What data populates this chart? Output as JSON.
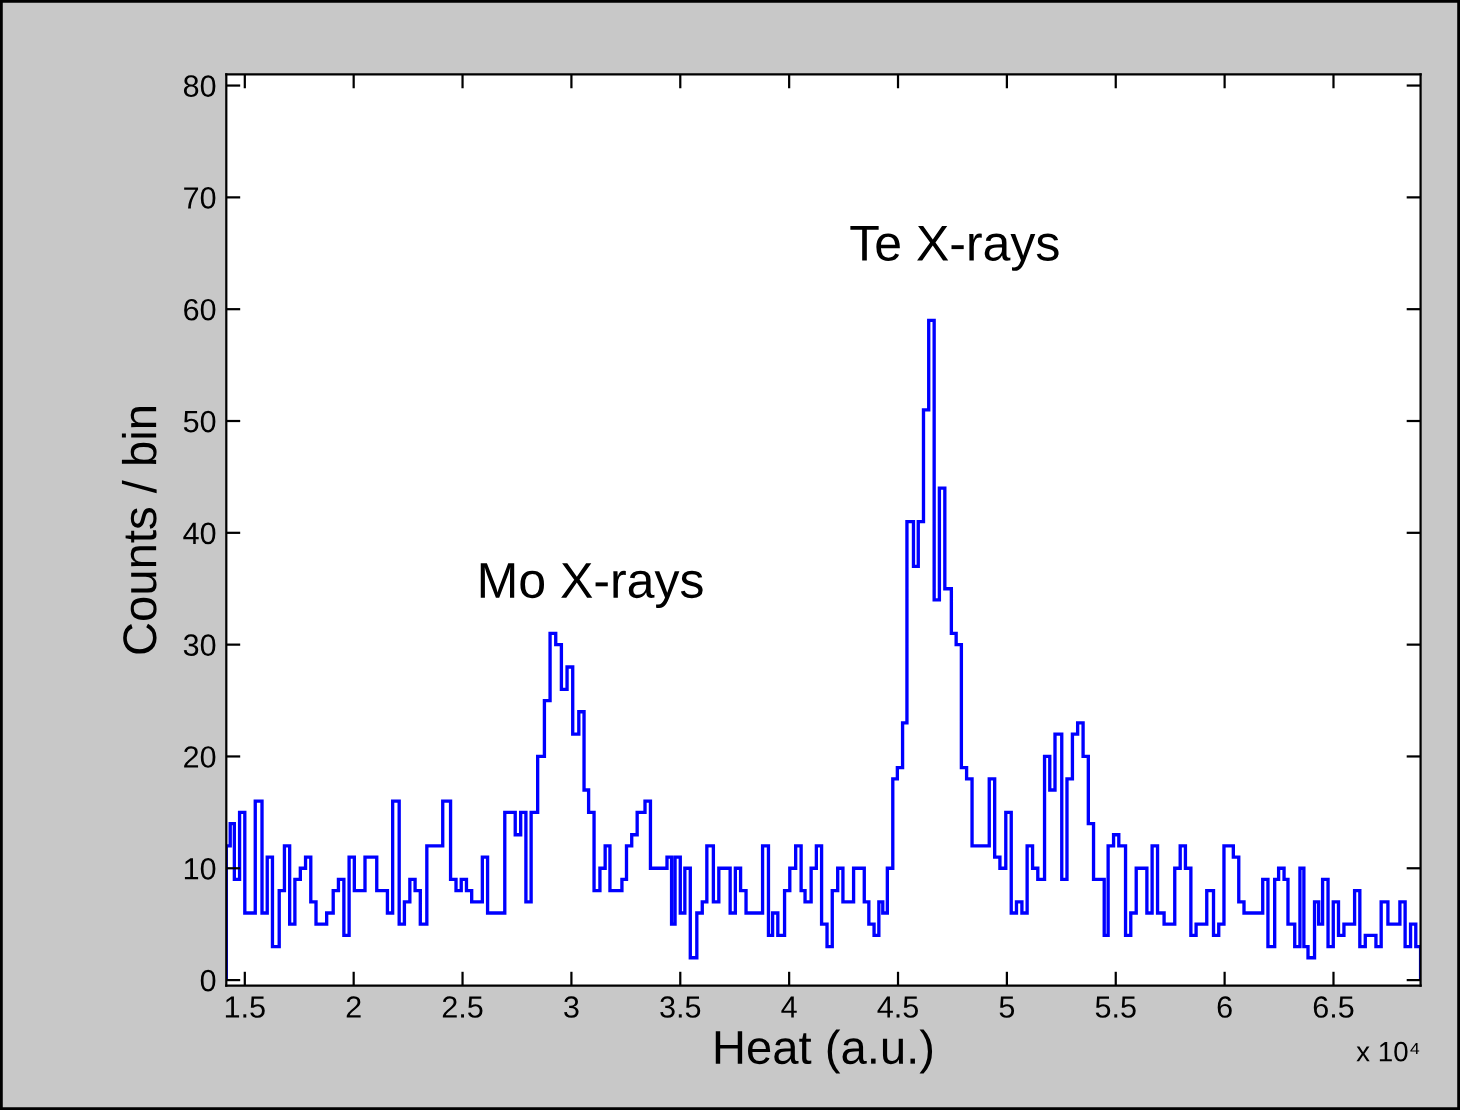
{
  "chart_data": {
    "type": "histogram",
    "xlabel": "Heat (a.u.)",
    "ylabel": "Counts / bin",
    "color": "#0000ff",
    "bins": [
      1.415,
      1.433,
      1.452,
      1.476,
      1.5,
      1.548,
      1.579,
      1.603,
      1.627,
      1.658,
      1.682,
      1.706,
      1.73,
      1.755,
      1.779,
      1.803,
      1.827,
      1.876,
      1.906,
      1.93,
      1.955,
      1.979,
      2.003,
      2.052,
      2.106,
      2.155,
      2.179,
      2.209,
      2.233,
      2.258,
      2.282,
      2.306,
      2.336,
      2.409,
      2.445,
      2.47,
      2.494,
      2.518,
      2.542,
      2.591,
      2.615,
      2.694,
      2.742,
      2.767,
      2.791,
      2.815,
      2.845,
      2.876,
      2.902,
      2.928,
      2.954,
      2.98,
      3.006,
      3.034,
      3.058,
      3.079,
      3.104,
      3.131,
      3.155,
      3.177,
      3.201,
      3.232,
      3.253,
      3.277,
      3.302,
      3.338,
      3.363,
      3.439,
      3.46,
      3.476,
      3.5,
      3.521,
      3.546,
      3.576,
      3.601,
      3.622,
      3.652,
      3.677,
      3.729,
      3.753,
      3.777,
      3.802,
      3.878,
      3.905,
      3.924,
      3.948,
      3.979,
      4.003,
      4.03,
      4.055,
      4.073,
      4.101,
      4.125,
      4.149,
      4.174,
      4.198,
      4.223,
      4.247,
      4.296,
      4.345,
      4.366,
      4.39,
      4.412,
      4.43,
      4.451,
      4.476,
      4.497,
      4.521,
      4.541,
      4.571,
      4.593,
      4.617,
      4.641,
      4.666,
      4.69,
      4.715,
      4.745,
      4.767,
      4.791,
      4.815,
      4.84,
      4.919,
      4.944,
      4.968,
      4.995,
      5.02,
      5.044,
      5.069,
      5.093,
      5.118,
      5.142,
      5.173,
      5.197,
      5.221,
      5.252,
      5.276,
      5.301,
      5.325,
      5.35,
      5.374,
      5.398,
      5.423,
      5.447,
      5.465,
      5.49,
      5.514,
      5.545,
      5.569,
      5.594,
      5.643,
      5.667,
      5.692,
      5.722,
      5.771,
      5.796,
      5.82,
      5.845,
      5.869,
      5.918,
      5.949,
      5.973,
      5.997,
      6.04,
      6.065,
      6.089,
      6.175,
      6.199,
      6.23,
      6.248,
      6.273,
      6.291,
      6.322,
      6.346,
      6.364,
      6.383,
      6.413,
      6.432,
      6.45,
      6.475,
      6.499,
      6.523,
      6.548,
      6.597,
      6.621,
      6.646,
      6.695,
      6.719,
      6.75,
      6.805,
      6.829,
      6.854,
      6.878,
      6.9
    ],
    "values": [
      12,
      14,
      9,
      15,
      6,
      16,
      6,
      11,
      3,
      8,
      12,
      5,
      9,
      10,
      11,
      7,
      5,
      6,
      8,
      9,
      4,
      11,
      8,
      11,
      8,
      6,
      16,
      5,
      7,
      9,
      8,
      5,
      12,
      16,
      9,
      8,
      9,
      8,
      7,
      11,
      6,
      15,
      13,
      15,
      7,
      15,
      20,
      25,
      31,
      30,
      26,
      28,
      22,
      24,
      17,
      15,
      8,
      10,
      12,
      8,
      8,
      9,
      12,
      13,
      15,
      16,
      10,
      11,
      5,
      11,
      6,
      10,
      2,
      6,
      7,
      12,
      7,
      10,
      6,
      10,
      8,
      6,
      12,
      4,
      6,
      4,
      8,
      10,
      12,
      8,
      7,
      10,
      12,
      5,
      3,
      8,
      10,
      7,
      10,
      7,
      5,
      4,
      7,
      6,
      10,
      18,
      19,
      23,
      41,
      37,
      41,
      51,
      59,
      34,
      44,
      35,
      31,
      30,
      19,
      18,
      12,
      18,
      11,
      10,
      15,
      6,
      7,
      6,
      12,
      10,
      9,
      20,
      17,
      22,
      9,
      18,
      22,
      23,
      20,
      14,
      9,
      9,
      4,
      12,
      13,
      12,
      4,
      6,
      10,
      6,
      12,
      6,
      5,
      10,
      12,
      10,
      4,
      5,
      8,
      4,
      5,
      12,
      11,
      7,
      6,
      9,
      3,
      9,
      10,
      9,
      5,
      3,
      10,
      3,
      2,
      7,
      5,
      9,
      3,
      7,
      4,
      5,
      8,
      3,
      4,
      3,
      7,
      5,
      7,
      3,
      5,
      3
    ],
    "xlim": [
      1.415,
      6.9
    ],
    "ylim": [
      -0.5,
      81
    ],
    "xticks": [
      1.5,
      2,
      2.5,
      3,
      3.5,
      4,
      4.5,
      5,
      5.5,
      6,
      6.5
    ],
    "yticks": [
      0,
      10,
      20,
      30,
      40,
      50,
      60,
      70,
      80
    ],
    "annotations": [
      "Mo X-rays",
      "Te X-rays",
      "x 10⁴"
    ]
  }
}
